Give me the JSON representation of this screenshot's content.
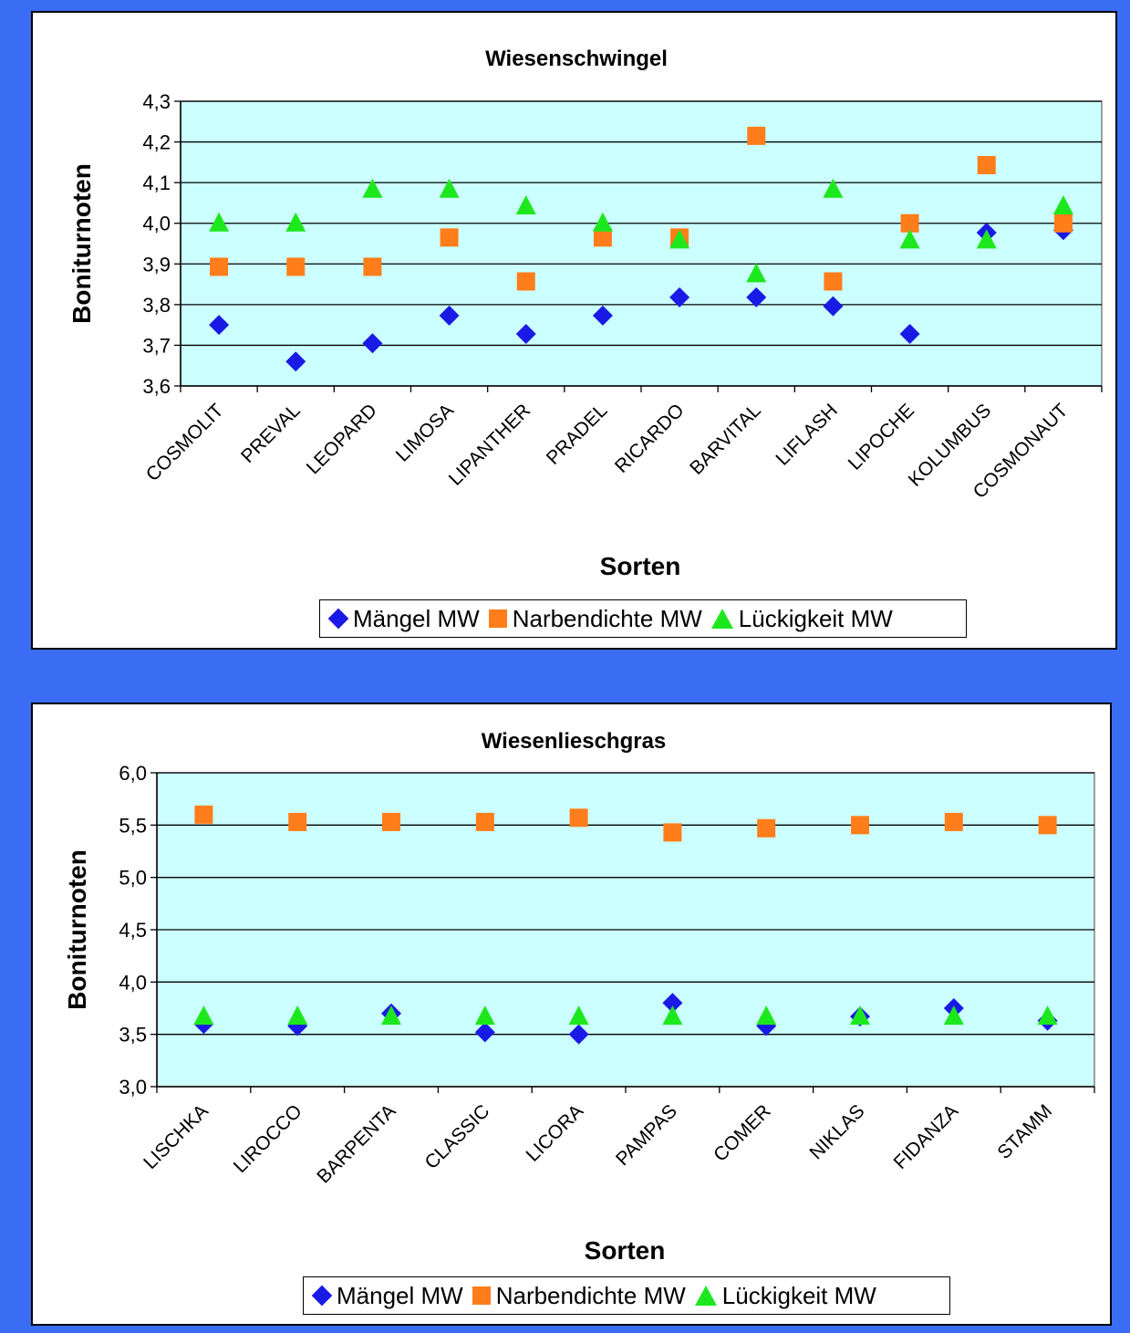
{
  "chart_data": [
    {
      "type": "scatter",
      "title": "Wiesenschwingel",
      "xlabel": "Sorten",
      "ylabel": "Boniturnoten",
      "categories": [
        "COSMOLIT",
        "PREVAL",
        "LEOPARD",
        "LIMOSA",
        "LIPANTHER",
        "PRADEL",
        "RICARDO",
        "BARVITAL",
        "LIFLASH",
        "LIPOCHE",
        "KOLUMBUS",
        "COSMONAUT"
      ],
      "ylim": [
        3.6,
        4.3
      ],
      "yticks": [
        "3,6",
        "3,7",
        "3,8",
        "3,9",
        "4,0",
        "4,1",
        "4,2",
        "4,3"
      ],
      "grid": true,
      "legend_position": "bottom",
      "series": [
        {
          "name": "Mängel MW",
          "marker": "diamond",
          "color": "#1a1ae6",
          "values": [
            3.75,
            3.66,
            3.705,
            3.773,
            3.728,
            3.773,
            3.818,
            3.818,
            3.796,
            3.728,
            3.977,
            3.983
          ]
        },
        {
          "name": "Narbendichte MW",
          "marker": "square",
          "color": "#ff7d1a",
          "values": [
            3.893,
            3.893,
            3.893,
            3.965,
            3.857,
            3.965,
            3.965,
            4.215,
            3.857,
            4.0,
            4.143,
            4.0
          ]
        },
        {
          "name": "Lückigkeit MW",
          "marker": "triangle",
          "color": "#1de81d",
          "values": [
            4.0,
            4.0,
            4.083,
            4.083,
            4.042,
            4.0,
            3.958,
            3.875,
            4.083,
            3.958,
            3.958,
            4.042
          ]
        }
      ]
    },
    {
      "type": "scatter",
      "title": "Wiesenlieschgras",
      "xlabel": "Sorten",
      "ylabel": "Boniturnoten",
      "categories": [
        "LISCHKA",
        "LIROCCO",
        "BARPENTA",
        "CLASSIC",
        "LICORA",
        "PAMPAS",
        "COMER",
        "NIKLAS",
        "FIDANZA",
        "STAMM"
      ],
      "ylim": [
        3.0,
        6.0
      ],
      "yticks": [
        "3,0",
        "3,5",
        "4,0",
        "4,5",
        "5,0",
        "5,5",
        "6,0"
      ],
      "grid": true,
      "legend_position": "bottom",
      "series": [
        {
          "name": "Mängel MW",
          "marker": "diamond",
          "color": "#1a1ae6",
          "values": [
            3.6,
            3.58,
            3.7,
            3.52,
            3.5,
            3.8,
            3.58,
            3.67,
            3.75,
            3.63
          ]
        },
        {
          "name": "Narbendichte MW",
          "marker": "square",
          "color": "#ff7d1a",
          "values": [
            5.6,
            5.53,
            5.53,
            5.53,
            5.57,
            5.43,
            5.47,
            5.5,
            5.53,
            5.5
          ]
        },
        {
          "name": "Lückigkeit MW",
          "marker": "triangle",
          "color": "#1de81d",
          "values": [
            3.67,
            3.67,
            3.67,
            3.67,
            3.67,
            3.67,
            3.67,
            3.67,
            3.67,
            3.67
          ]
        }
      ]
    }
  ]
}
